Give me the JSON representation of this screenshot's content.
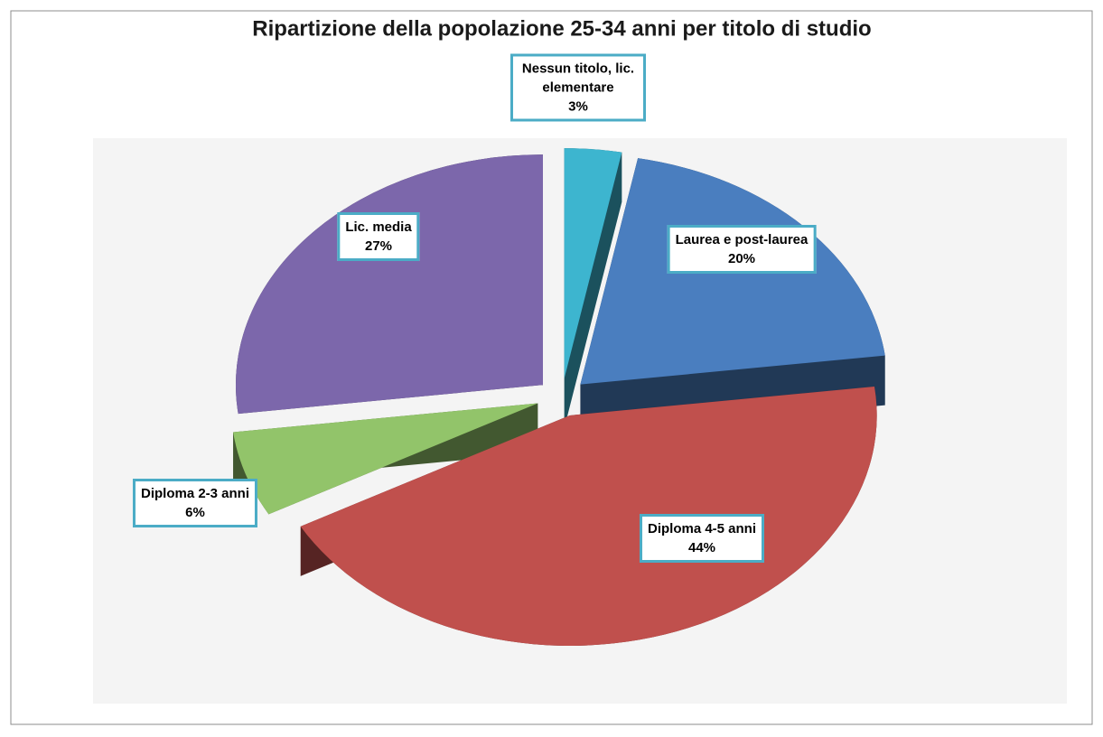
{
  "chart_data": {
    "type": "pie3d",
    "title": "Ripartizione della popolazione 25-34 anni per titolo di studio",
    "categories": [
      "Nessun titolo, lic. elementare",
      "Laurea e post-laurea",
      "Diploma 4-5 anni",
      "Diploma 2-3 anni",
      "Lic. media"
    ],
    "values": [
      3,
      20,
      44,
      6,
      27
    ],
    "value_labels": [
      "3%",
      "20%",
      "44%",
      "6%",
      "27%"
    ],
    "colors": [
      "#3db5cf",
      "#4a7ebf",
      "#c0504d",
      "#92c46a",
      "#7c67ab"
    ]
  }
}
